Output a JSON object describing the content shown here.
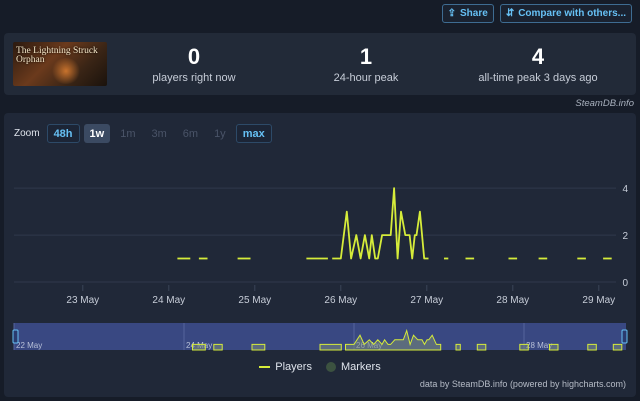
{
  "toolbar": {
    "share_label": "Share",
    "compare_label": "Compare with others..."
  },
  "game": {
    "thumbnail_title": "The Lightning Struck Orphan"
  },
  "stats": [
    {
      "value": "0",
      "label": "players right now"
    },
    {
      "value": "1",
      "label": "24-hour peak"
    },
    {
      "value": "4",
      "label": "all-time peak 3 days ago"
    }
  ],
  "credit": "SteamDB.info",
  "zoom": {
    "label": "Zoom",
    "buttons": [
      "48h",
      "1w",
      "1m",
      "3m",
      "6m",
      "1y",
      "max"
    ],
    "selected": "1w"
  },
  "chart_data": {
    "type": "line",
    "series": [
      {
        "name": "Players",
        "color": "#d6ec3a",
        "segments": [
          [
            [
              24.1,
              1
            ],
            [
              24.25,
              1
            ]
          ],
          [
            [
              24.35,
              1
            ],
            [
              24.45,
              1
            ]
          ],
          [
            [
              24.8,
              1
            ],
            [
              24.95,
              1
            ]
          ],
          [
            [
              25.6,
              1
            ],
            [
              25.72,
              1
            ],
            [
              25.85,
              1
            ]
          ],
          [
            [
              25.9,
              1
            ],
            [
              26.0,
              1
            ],
            [
              26.07,
              3
            ],
            [
              26.12,
              1
            ],
            [
              26.18,
              2
            ],
            [
              26.23,
              1
            ],
            [
              26.28,
              2
            ],
            [
              26.33,
              1
            ],
            [
              26.36,
              2
            ],
            [
              26.4,
              1
            ],
            [
              26.43,
              1
            ],
            [
              26.48,
              2
            ],
            [
              26.53,
              2
            ],
            [
              26.58,
              2
            ],
            [
              26.62,
              4
            ],
            [
              26.66,
              1
            ],
            [
              26.7,
              3
            ],
            [
              26.75,
              2
            ],
            [
              26.8,
              2
            ],
            [
              26.83,
              1
            ],
            [
              26.86,
              2
            ],
            [
              26.88,
              2
            ],
            [
              26.92,
              3
            ],
            [
              26.97,
              1
            ],
            [
              27.02,
              1
            ]
          ],
          [
            [
              27.2,
              1
            ],
            [
              27.25,
              1
            ]
          ],
          [
            [
              27.45,
              1
            ],
            [
              27.55,
              1
            ]
          ],
          [
            [
              27.95,
              1
            ],
            [
              28.05,
              1
            ]
          ],
          [
            [
              28.3,
              1
            ],
            [
              28.4,
              1
            ]
          ],
          [
            [
              28.75,
              1
            ],
            [
              28.85,
              1
            ]
          ],
          [
            [
              29.05,
              1
            ],
            [
              29.15,
              1
            ]
          ]
        ]
      }
    ],
    "x_ticks": [
      "23 May",
      "24 May",
      "25 May",
      "26 May",
      "27 May",
      "28 May",
      "29 May"
    ],
    "y_ticks": [
      0,
      2,
      4
    ],
    "xlim": [
      22.2,
      29.2
    ],
    "ylim": [
      0,
      5.5
    ],
    "navigator_ticks": [
      "22 May",
      "24 May",
      "26 May",
      "28 May"
    ],
    "navigator_xlim": [
      22.0,
      29.2
    ]
  },
  "legend": {
    "players": "Players",
    "markers": "Markers"
  },
  "footer": "data by SteamDB.info (powered by highcharts.com)"
}
